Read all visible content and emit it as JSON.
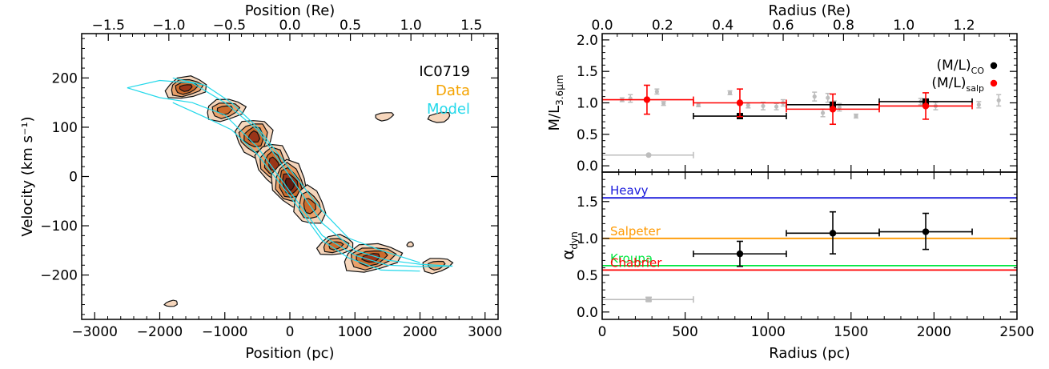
{
  "chart_data": [
    {
      "type": "contour",
      "panel": "left",
      "object_label": "IC0719",
      "legend": [
        {
          "name": "Data",
          "color": "#f4a300"
        },
        {
          "name": "Model",
          "color": "#22d8ea"
        }
      ],
      "xlabel": "Position (pc)",
      "ylabel": "Velocity (km s⁻¹)",
      "x2label": "Position (Re)",
      "xlim": [
        -3200,
        3200
      ],
      "ylim": [
        -290,
        290
      ],
      "x2lim": [
        -1.72,
        1.72
      ],
      "xticks": [
        -3000,
        -2000,
        -1000,
        0,
        1000,
        2000,
        3000
      ],
      "xticklabels": [
        "−3000",
        "−2000",
        "−1000",
        "0",
        "1000",
        "2000",
        "3000"
      ],
      "yticks": [
        -200,
        -100,
        0,
        100,
        200
      ],
      "yticklabels": [
        "−200",
        "−100",
        "0",
        "100",
        "200"
      ],
      "x2ticks": [
        -1.5,
        -1.0,
        -0.5,
        0.0,
        0.5,
        1.0,
        1.5
      ],
      "x2ticklabels": [
        "−1.5",
        "−1.0",
        "−0.5",
        "0.0",
        "0.5",
        "1.0",
        "1.5"
      ],
      "data_clumps": [
        {
          "x": -1600,
          "y": 180,
          "dx": 320,
          "dy": 22,
          "levels": 4
        },
        {
          "x": -1000,
          "y": 135,
          "dx": 300,
          "dy": 22,
          "levels": 3
        },
        {
          "x": -550,
          "y": 80,
          "dx": 280,
          "dy": 38,
          "levels": 4
        },
        {
          "x": -250,
          "y": 25,
          "dx": 250,
          "dy": 45,
          "levels": 4
        },
        {
          "x": 0,
          "y": -15,
          "dx": 260,
          "dy": 50,
          "levels": 5
        },
        {
          "x": 300,
          "y": -60,
          "dx": 230,
          "dy": 40,
          "levels": 3
        },
        {
          "x": 700,
          "y": -140,
          "dx": 280,
          "dy": 20,
          "levels": 3
        },
        {
          "x": 1250,
          "y": -165,
          "dx": 450,
          "dy": 28,
          "levels": 4
        },
        {
          "x": 2250,
          "y": -180,
          "dx": 230,
          "dy": 15,
          "levels": 2
        },
        {
          "x": 1450,
          "y": 122,
          "dx": 140,
          "dy": 8,
          "levels": 1
        },
        {
          "x": 2300,
          "y": 120,
          "dx": 170,
          "dy": 10,
          "levels": 1
        },
        {
          "x": -1820,
          "y": -258,
          "dx": 100,
          "dy": 6,
          "levels": 1
        },
        {
          "x": 1850,
          "y": -138,
          "dx": 50,
          "dy": 5,
          "levels": 1
        }
      ],
      "model_curves": [
        {
          "x": [
            -2500,
            -2000,
            -1500,
            -1000,
            -500,
            0,
            500,
            1000,
            1500,
            2000,
            2500
          ],
          "y": [
            180,
            195,
            190,
            150,
            95,
            0,
            -95,
            -150,
            -170,
            -178,
            -182
          ]
        },
        {
          "x": [
            -2500,
            -2000,
            -1500,
            -1000,
            -500,
            0,
            500,
            1000,
            1500,
            2000,
            2500
          ],
          "y": [
            180,
            160,
            150,
            125,
            60,
            -30,
            -120,
            -160,
            -180,
            -183,
            -182
          ]
        },
        {
          "x": [
            -1800,
            -1300,
            -900,
            -500,
            0,
            500,
            900,
            1400,
            2000
          ],
          "y": [
            200,
            185,
            150,
            100,
            15,
            -70,
            -125,
            -150,
            -175
          ]
        },
        {
          "x": [
            -1800,
            -1300,
            -900,
            -500,
            0,
            500,
            900,
            1400,
            2000
          ],
          "y": [
            150,
            120,
            95,
            45,
            -40,
            -130,
            -165,
            -190,
            -192
          ]
        }
      ]
    },
    {
      "type": "errorbar",
      "panel": "top-right",
      "ylabel": "M/L",
      "ylabel_sub": "3.6μm",
      "x2label": "Radius (Re)",
      "xlim": [
        0,
        2500
      ],
      "ylim": [
        -0.1,
        2.1
      ],
      "x2lim": [
        0,
        1.375
      ],
      "yticks": [
        0.0,
        0.5,
        1.0,
        1.5,
        2.0
      ],
      "yticklabels": [
        "0.0",
        "0.5",
        "1.0",
        "1.5",
        "2.0"
      ],
      "x2ticks": [
        0.0,
        0.2,
        0.4,
        0.6,
        0.8,
        1.0,
        1.2
      ],
      "x2ticklabels": [
        "0.0",
        "0.2",
        "0.4",
        "0.6",
        "0.8",
        "1.0",
        "1.2"
      ],
      "legend": [
        {
          "name": "(M/L)",
          "sub": "CO",
          "color": "#000000"
        },
        {
          "name": "(M/L)",
          "sub": "salp",
          "color": "#ff0000"
        }
      ],
      "series": [
        {
          "name": "(M/L)CO",
          "color": "#000000",
          "marker": "square",
          "points": [
            {
              "x": 830,
              "y": 0.79,
              "xlo": 550,
              "xhi": 1110,
              "ylo": 0.79,
              "yhi": 0.79
            },
            {
              "x": 1390,
              "y": 0.97,
              "xlo": 1110,
              "xhi": 1670,
              "ylo": 0.97,
              "yhi": 0.97
            },
            {
              "x": 1950,
              "y": 1.02,
              "xlo": 1670,
              "xhi": 2230,
              "ylo": 1.02,
              "yhi": 1.02
            }
          ]
        },
        {
          "name": "(M/L)salp",
          "color": "#ff0000",
          "marker": "circle",
          "points": [
            {
              "x": 270,
              "y": 1.05,
              "xlo": 0,
              "xhi": 550,
              "ylo": 0.82,
              "yhi": 1.28
            },
            {
              "x": 830,
              "y": 1.0,
              "xlo": 550,
              "xhi": 1110,
              "ylo": 0.78,
              "yhi": 1.22
            },
            {
              "x": 1390,
              "y": 0.9,
              "xlo": 1110,
              "xhi": 1670,
              "ylo": 0.66,
              "yhi": 1.14
            },
            {
              "x": 1950,
              "y": 0.95,
              "xlo": 1670,
              "xhi": 2230,
              "ylo": 0.74,
              "yhi": 1.16
            }
          ]
        },
        {
          "name": "profile",
          "color": "#bdbdbd",
          "marker": "small",
          "points": [
            {
              "x": 120,
              "y": 1.05,
              "e": 0.03
            },
            {
              "x": 170,
              "y": 1.07,
              "e": 0.06
            },
            {
              "x": 330,
              "y": 1.18,
              "e": 0.04
            },
            {
              "x": 370,
              "y": 0.99,
              "e": 0.03
            },
            {
              "x": 580,
              "y": 0.97,
              "e": 0.03
            },
            {
              "x": 770,
              "y": 1.16,
              "e": 0.03
            },
            {
              "x": 880,
              "y": 0.96,
              "e": 0.04
            },
            {
              "x": 970,
              "y": 0.95,
              "e": 0.06
            },
            {
              "x": 1050,
              "y": 0.94,
              "e": 0.05
            },
            {
              "x": 1090,
              "y": 1.0,
              "e": 0.05
            },
            {
              "x": 1280,
              "y": 1.1,
              "e": 0.07
            },
            {
              "x": 1330,
              "y": 0.84,
              "e": 0.06
            },
            {
              "x": 1360,
              "y": 1.08,
              "e": 0.07
            },
            {
              "x": 1400,
              "y": 0.97,
              "e": 0.06
            },
            {
              "x": 1430,
              "y": 0.93,
              "e": 0.06
            },
            {
              "x": 1530,
              "y": 0.79,
              "e": 0.03
            },
            {
              "x": 1920,
              "y": 1.02,
              "e": 0.05
            },
            {
              "x": 2010,
              "y": 0.95,
              "e": 0.06
            },
            {
              "x": 2270,
              "y": 0.97,
              "e": 0.05
            },
            {
              "x": 2390,
              "y": 1.04,
              "e": 0.09
            }
          ]
        },
        {
          "name": "psf",
          "color": "#bdbdbd",
          "marker": "circle",
          "points": [
            {
              "x": 280,
              "y": 0.17,
              "xlo": 0,
              "xhi": 550
            }
          ]
        }
      ]
    },
    {
      "type": "errorbar",
      "panel": "bottom-right",
      "xlabel": "Radius (pc)",
      "ylabel": "α",
      "ylabel_sub": "dyn",
      "xlim": [
        0,
        2500
      ],
      "ylim": [
        -0.1,
        1.9
      ],
      "xticks": [
        0,
        500,
        1000,
        1500,
        2000,
        2500
      ],
      "xticklabels": [
        "0",
        "500",
        "1000",
        "1500",
        "2000",
        "2500"
      ],
      "yticks": [
        0.0,
        0.5,
        1.0,
        1.5
      ],
      "yticklabels": [
        "0.0",
        "0.5",
        "1.0",
        "1.5"
      ],
      "hlines": [
        {
          "name": "Heavy",
          "y": 1.55,
          "color": "#1a1adc"
        },
        {
          "name": "Salpeter",
          "y": 1.0,
          "color": "#ff9900"
        },
        {
          "name": "Kroupa",
          "y": 0.63,
          "color": "#00e640"
        },
        {
          "name": "Chabrier",
          "y": 0.57,
          "color": "#ff0000"
        }
      ],
      "series": [
        {
          "name": "alpha",
          "color": "#000000",
          "marker": "circle",
          "points": [
            {
              "x": 830,
              "y": 0.79,
              "xlo": 550,
              "xhi": 1110,
              "ylo": 0.62,
              "yhi": 0.96
            },
            {
              "x": 1390,
              "y": 1.07,
              "xlo": 1110,
              "xhi": 1670,
              "ylo": 0.79,
              "yhi": 1.36
            },
            {
              "x": 1950,
              "y": 1.09,
              "xlo": 1670,
              "xhi": 2230,
              "ylo": 0.85,
              "yhi": 1.34
            }
          ]
        },
        {
          "name": "psf",
          "color": "#bdbdbd",
          "marker": "square",
          "points": [
            {
              "x": 280,
              "y": 0.17,
              "xlo": 0,
              "xhi": 550,
              "ylo": 0.15,
              "yhi": 0.2
            }
          ]
        }
      ]
    }
  ]
}
